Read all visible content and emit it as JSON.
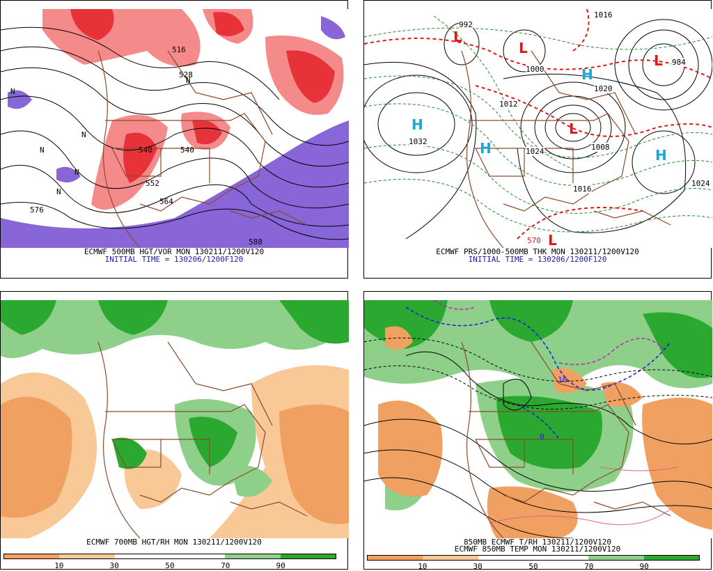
{
  "panels": [
    {
      "caption_line1": "ECMWF 500MB HGT/VOR MON 130211/1200V120",
      "caption_line2": "INITIAL TIME = 130206/1200F120",
      "labels": [
        "576",
        "552",
        "540",
        "540",
        "516",
        "528",
        "564",
        "588",
        "N",
        "N",
        "N",
        "N",
        "N",
        "N"
      ]
    },
    {
      "caption_line1": "ECMWF PRS/1000-500MB THK MON 130211/1200V120",
      "caption_line2": "INITIAL TIME = 130206/1200F120",
      "labels": [
        "1032",
        "1024",
        "1016",
        "1008",
        "1000",
        "1024",
        "1016",
        "992",
        "984",
        "1020",
        "1012",
        "570"
      ],
      "highs": [
        "H",
        "H",
        "H",
        "H"
      ],
      "lows": [
        "L",
        "L",
        "L",
        "L",
        "L"
      ]
    },
    {
      "caption_line1": "ECMWF 700MB HGT/RH MON 130211/1200V120",
      "scale_ticks": [
        "10",
        "30",
        "50",
        "70",
        "90"
      ]
    },
    {
      "caption_line1": "850MB ECMWF T/RH 130211/1200V120",
      "caption_line2": "ECMWF 850MB TEMP MON 130211/1200V120",
      "labels": [
        "10",
        "0"
      ],
      "scale_ticks": [
        "10",
        "30",
        "50",
        "70",
        "90"
      ]
    }
  ],
  "colors": {
    "vort_red": "#e8323a",
    "vort_pink": "#f48a8a",
    "vort_purple": "#8866d8",
    "dry_orange": "#f0a060",
    "dry_light": "#f8c896",
    "moist_green": "#2aa830",
    "moist_light": "#8ed08a",
    "border_brown": "#8b4a2a",
    "thick_red": "#e01818",
    "thick_green": "#1e8a1e",
    "high_cyan": "#1aa8d8"
  }
}
